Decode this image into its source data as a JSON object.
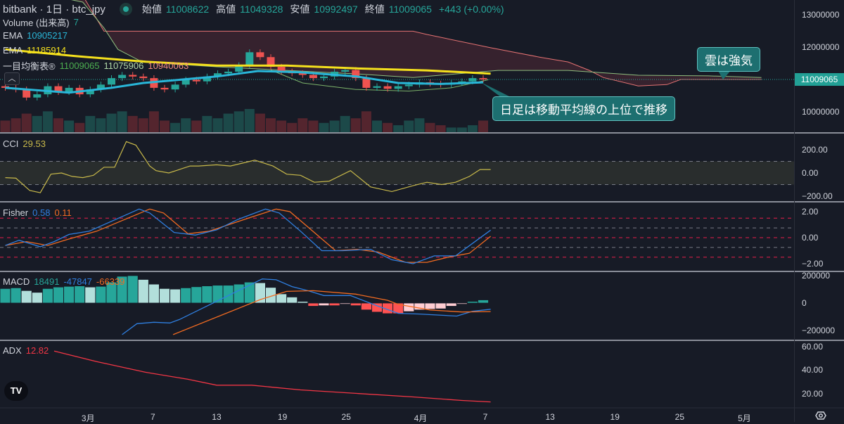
{
  "header": {
    "symbol": "bitbank · 1日 · btc_jpy",
    "open_label": "始値",
    "open": "11008622",
    "high_label": "高値",
    "high": "11049328",
    "low_label": "安値",
    "low": "10992497",
    "close_label": "終値",
    "close": "11009065",
    "change": "+443 (+0.00%)"
  },
  "legends": {
    "volume": {
      "label": "Volume (出来高)",
      "value": "7"
    },
    "ema1": {
      "label": "EMA",
      "value": "10905217"
    },
    "ema2": {
      "label": "EMA",
      "value": "11185914"
    },
    "ichimoku": {
      "label": "一目均衡表®",
      "values": [
        "11009065",
        "11075906",
        "10940063"
      ]
    },
    "cci": {
      "label": "CCI",
      "value": "29.53"
    },
    "fisher": {
      "label": "Fisher",
      "values": [
        "0.58",
        "0.11"
      ]
    },
    "macd": {
      "label": "MACD",
      "values": [
        "18491",
        "-47847",
        "-66339"
      ]
    },
    "adx": {
      "label": "ADX",
      "value": "12.82"
    }
  },
  "axes": {
    "price": [
      {
        "label": "13000000",
        "value": 13.0
      },
      {
        "label": "12000000",
        "value": 12.0
      },
      {
        "label": "10000000",
        "value": 10.0
      }
    ],
    "last_price": "11009065",
    "cci": [
      {
        "label": "200.00",
        "value": 200
      },
      {
        "label": "0.00",
        "value": 0
      },
      {
        "label": "−200.00",
        "value": -200
      }
    ],
    "fisher": [
      {
        "label": "2.00",
        "value": 2
      },
      {
        "label": "0.00",
        "value": 0
      },
      {
        "label": "−2.00",
        "value": -2
      }
    ],
    "macd": [
      {
        "label": "200000",
        "value": 200
      },
      {
        "label": "0",
        "value": 0
      },
      {
        "label": "−200000",
        "value": -200
      }
    ],
    "adx": [
      {
        "label": "60.00",
        "value": 60
      },
      {
        "label": "40.00",
        "value": 40
      },
      {
        "label": "20.00",
        "value": 20
      }
    ],
    "time": [
      {
        "label": "3月",
        "day": 7.8
      },
      {
        "label": "7",
        "day": 13.9
      },
      {
        "label": "13",
        "day": 19.9
      },
      {
        "label": "19",
        "day": 26.1
      },
      {
        "label": "25",
        "day": 32.1
      },
      {
        "label": "4月",
        "day": 39.1
      },
      {
        "label": "7",
        "day": 45.2
      },
      {
        "label": "13",
        "day": 51.3
      },
      {
        "label": "19",
        "day": 57.4
      },
      {
        "label": "25",
        "day": 63.5
      },
      {
        "label": "5月",
        "day": 69.6
      }
    ]
  },
  "annotations": [
    {
      "text": "雲は強気"
    },
    {
      "text": "日足は移動平均線の上位で推移"
    }
  ],
  "colors": {
    "up": "#26a69a",
    "down": "#ef5350",
    "ema1": "#29b6d8",
    "ema2": "#f5e11d",
    "spanA": "#8fbf7f",
    "spanB": "#e57373",
    "cloud": "#3a2430",
    "cci": "#c8b94a",
    "fisher": "#2f7fe0",
    "trigger": "#f26b21",
    "macd": "#2f7fe0",
    "signal": "#f26b21",
    "adx": "#f23645"
  },
  "chart_data": {
    "type": "candlestick",
    "price_unit": "million JPY",
    "first_open": 10.8,
    "close": [
      10.75,
      10.7,
      10.45,
      10.55,
      10.8,
      10.62,
      10.75,
      10.55,
      10.7,
      10.85,
      11.05,
      11.15,
      11.1,
      11.05,
      10.75,
      10.7,
      10.85,
      11.0,
      10.95,
      11.1,
      11.2,
      11.25,
      11.45,
      11.85,
      11.7,
      11.4,
      11.25,
      11.2,
      11.15,
      11.05,
      11.1,
      11.25,
      11.3,
      11.05,
      10.75,
      10.8,
      10.72,
      10.8,
      10.85,
      10.92,
      10.88,
      10.85,
      10.9,
      10.95,
      11.05,
      11.01
    ],
    "volume_rel": [
      0.5,
      0.6,
      0.8,
      0.7,
      0.9,
      0.6,
      0.5,
      0.4,
      0.7,
      0.6,
      0.8,
      0.9,
      0.7,
      0.6,
      0.9,
      0.5,
      0.4,
      0.6,
      0.5,
      0.7,
      0.6,
      0.8,
      0.9,
      1.0,
      0.8,
      0.6,
      0.5,
      0.4,
      0.6,
      0.5,
      0.4,
      0.5,
      0.7,
      0.6,
      0.9,
      0.5,
      0.4,
      0.3,
      0.5,
      0.6,
      0.4,
      0.3,
      0.2,
      0.2,
      0.3,
      0.5
    ],
    "ema1": [
      [
        0,
        10.75
      ],
      [
        6,
        10.6
      ],
      [
        10,
        10.75
      ],
      [
        13,
        10.9
      ],
      [
        19.9,
        11.1
      ],
      [
        23.8,
        11.27
      ],
      [
        27.8,
        11.23
      ],
      [
        33.1,
        11.1
      ],
      [
        37,
        10.9
      ],
      [
        41,
        10.87
      ],
      [
        45,
        10.92
      ]
    ],
    "ema2": [
      [
        0,
        11.94
      ],
      [
        6.6,
        11.73
      ],
      [
        13.2,
        11.56
      ],
      [
        19.9,
        11.44
      ],
      [
        26.5,
        11.44
      ],
      [
        33.1,
        11.35
      ],
      [
        39.7,
        11.29
      ],
      [
        45.7,
        11.19
      ]
    ],
    "span_a": [
      [
        0,
        13.9
      ],
      [
        7.3,
        13.4
      ],
      [
        9.3,
        12.6
      ],
      [
        10.6,
        11.94
      ],
      [
        12.6,
        11.6
      ],
      [
        15.2,
        11.5
      ],
      [
        19.9,
        11.4
      ],
      [
        26.5,
        11.29
      ],
      [
        33.1,
        11.18
      ],
      [
        38.4,
        11.07
      ],
      [
        46.4,
        11.29
      ],
      [
        53,
        11.29
      ],
      [
        59.6,
        11.14
      ],
      [
        66.2,
        11.12
      ],
      [
        71.2,
        11.07
      ]
    ],
    "span_b": [
      [
        0,
        13.9
      ],
      [
        7.3,
        13.6
      ],
      [
        9.3,
        12.5
      ],
      [
        38.4,
        12.5
      ],
      [
        39.7,
        12.4
      ],
      [
        45.7,
        11.99
      ],
      [
        50.3,
        11.7
      ],
      [
        53,
        11.55
      ],
      [
        55,
        11.29
      ],
      [
        56.3,
        11.07
      ],
      [
        59.6,
        10.81
      ],
      [
        62.3,
        10.85
      ],
      [
        63.6,
        11.01
      ],
      [
        71.2,
        11.01
      ]
    ],
    "lagging": [
      [
        25,
        11.3
      ],
      [
        28,
        10.9
      ],
      [
        33,
        10.7
      ],
      [
        38,
        10.65
      ],
      [
        42,
        10.75
      ],
      [
        45.5,
        11.0
      ]
    ],
    "cci": [
      [
        0,
        -40
      ],
      [
        1,
        -45
      ],
      [
        2.3,
        -150
      ],
      [
        3.3,
        -170
      ],
      [
        4.3,
        -10
      ],
      [
        5.3,
        0
      ],
      [
        6.3,
        -30
      ],
      [
        7.3,
        -40
      ],
      [
        8.3,
        -20
      ],
      [
        9.3,
        50
      ],
      [
        10.3,
        50
      ],
      [
        11.4,
        270
      ],
      [
        12.3,
        240
      ],
      [
        13.6,
        60
      ],
      [
        14.2,
        20
      ],
      [
        15.4,
        0
      ],
      [
        17.4,
        60
      ],
      [
        18.2,
        60
      ],
      [
        19.9,
        70
      ],
      [
        21.2,
        60
      ],
      [
        23.5,
        110
      ],
      [
        25.2,
        60
      ],
      [
        26.5,
        -10
      ],
      [
        27.8,
        -20
      ],
      [
        29.1,
        -80
      ],
      [
        30.5,
        -70
      ],
      [
        32.5,
        20
      ],
      [
        34.4,
        -120
      ],
      [
        36.4,
        -160
      ],
      [
        38.4,
        -110
      ],
      [
        39.7,
        -80
      ],
      [
        41.1,
        -100
      ],
      [
        42.4,
        -80
      ],
      [
        43.7,
        -30
      ],
      [
        44.7,
        30
      ],
      [
        45.7,
        30
      ]
    ],
    "fisher": [
      [
        0,
        -0.6
      ],
      [
        1.3,
        -0.2
      ],
      [
        3.3,
        -0.7
      ],
      [
        4.6,
        -0.3
      ],
      [
        6,
        0.25
      ],
      [
        7.9,
        0.5
      ],
      [
        12.6,
        2.2
      ],
      [
        13.6,
        1.9
      ],
      [
        15.9,
        0.4
      ],
      [
        17.9,
        0.2
      ],
      [
        19.9,
        0.6
      ],
      [
        21.9,
        1.4
      ],
      [
        24.5,
        2.2
      ],
      [
        25.8,
        1.9
      ],
      [
        27.8,
        0.5
      ],
      [
        29.8,
        -1.0
      ],
      [
        31.8,
        -1.0
      ],
      [
        34.4,
        -0.9
      ],
      [
        36.4,
        -1.7
      ],
      [
        38.4,
        -2.0
      ],
      [
        40.4,
        -1.4
      ],
      [
        42.4,
        -1.4
      ],
      [
        44.4,
        -0.2
      ],
      [
        45.7,
        0.58
      ]
    ],
    "trigger": [
      [
        0,
        -0.6
      ],
      [
        2,
        -0.3
      ],
      [
        4,
        -0.6
      ],
      [
        6,
        -0.1
      ],
      [
        8.6,
        0.5
      ],
      [
        13.6,
        2.2
      ],
      [
        14.9,
        1.9
      ],
      [
        17.2,
        0.3
      ],
      [
        19.2,
        0.5
      ],
      [
        22.5,
        1.4
      ],
      [
        25.5,
        2.2
      ],
      [
        26.8,
        2.0
      ],
      [
        29.1,
        0.4
      ],
      [
        31.1,
        -1.0
      ],
      [
        33.1,
        -0.9
      ],
      [
        35.1,
        -1.1
      ],
      [
        37.7,
        -1.9
      ],
      [
        39.7,
        -1.9
      ],
      [
        41.7,
        -1.5
      ],
      [
        43.7,
        -1.2
      ],
      [
        45.7,
        0.11
      ]
    ],
    "fisher_levels": [
      1.5,
      0.75,
      0,
      -0.75,
      -1.5
    ],
    "macd_unit": "thousand",
    "macd_hist": [
      106,
      111,
      91,
      78,
      106,
      117,
      122,
      125,
      117,
      122,
      153,
      195,
      200,
      172,
      138,
      106,
      102,
      111,
      119,
      125,
      130,
      130,
      138,
      153,
      148,
      114,
      67,
      44,
      12,
      -23,
      -19,
      -19,
      -8,
      -19,
      -50,
      -66,
      -77,
      -77,
      -62,
      -50,
      -45,
      -42,
      -23,
      -8,
      12,
      23
    ],
    "macd": [
      [
        11,
        -230
      ],
      [
        12.4,
        -150
      ],
      [
        14,
        -140
      ],
      [
        15.5,
        -145
      ],
      [
        16.4,
        -120
      ],
      [
        24.2,
        176
      ],
      [
        25.5,
        170
      ],
      [
        27,
        120
      ],
      [
        28.5,
        90
      ],
      [
        30,
        55
      ],
      [
        32.5,
        55
      ],
      [
        35,
        -20
      ],
      [
        37,
        -75
      ],
      [
        39,
        -80
      ],
      [
        42.5,
        -95
      ],
      [
        44,
        -60
      ],
      [
        45.7,
        -45
      ]
    ],
    "signal": [
      [
        15.8,
        -230
      ],
      [
        24,
        25
      ],
      [
        26.5,
        85
      ],
      [
        29,
        90
      ],
      [
        33,
        65
      ],
      [
        36,
        20
      ],
      [
        37,
        -10
      ],
      [
        40,
        -50
      ],
      [
        43,
        -65
      ],
      [
        45.7,
        -62
      ]
    ],
    "adx": [
      [
        4.6,
        56
      ],
      [
        8.6,
        47
      ],
      [
        13.2,
        38
      ],
      [
        17.2,
        32
      ],
      [
        19.9,
        27
      ],
      [
        23.2,
        27
      ],
      [
        27.8,
        23
      ],
      [
        33.1,
        20
      ],
      [
        38.4,
        17
      ],
      [
        43,
        14
      ],
      [
        45.7,
        12.8
      ]
    ]
  }
}
